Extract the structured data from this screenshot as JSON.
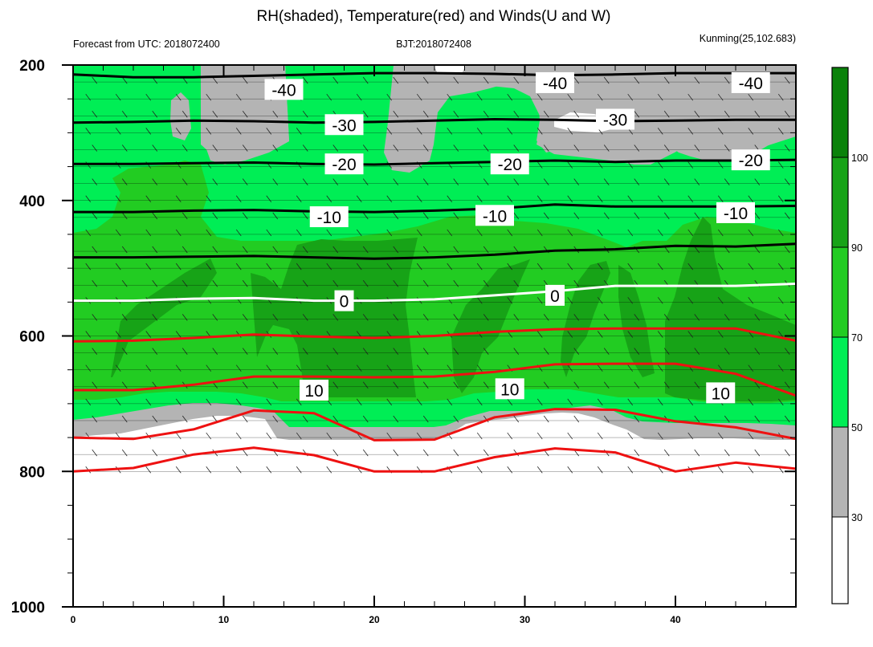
{
  "chart_data": {
    "type": "heatmap",
    "title": "RH(shaded), Temperature(red) and Winds(U and W)",
    "subtitle_left": "Forecast from UTC: 2018072400",
    "subtitle_center": "BJT:2018072408",
    "subtitle_right": "Kunming(25,102.683)",
    "x_range": [
      0,
      48
    ],
    "y_range": [
      200,
      1000
    ],
    "x_ticks": [
      "0",
      "10",
      "20",
      "30",
      "40"
    ],
    "y_ticks": [
      "200",
      "400",
      "600",
      "800",
      "1000"
    ],
    "colorbar_levels": [
      "30",
      "50",
      "70",
      "90",
      "100"
    ],
    "colors": {
      "rh_lt30": "#ffffff",
      "rh_30_50": "#b4b4b4",
      "rh_50_70": "#00ee55",
      "rh_70_90": "#22cc22",
      "rh_90_100": "#17a317",
      "rh_gt100": "#0a820a",
      "temp_warm": "#ee1111",
      "temp_cold": "#000000",
      "freezing": "#ffffff"
    },
    "temperature_contours": [
      {
        "label": "-40",
        "y": [
          214,
          218,
          218,
          216,
          214,
          212,
          212,
          213,
          215,
          214,
          212,
          212,
          212
        ]
      },
      {
        "label": "-30",
        "y": [
          285,
          284,
          282,
          283,
          285,
          284,
          282,
          280,
          281,
          283,
          282,
          281,
          281
        ]
      },
      {
        "label": "-20",
        "y": [
          346,
          346,
          345,
          344,
          346,
          347,
          345,
          343,
          341,
          343,
          341,
          341,
          340
        ]
      },
      {
        "label": "-10",
        "y": [
          417,
          417,
          415,
          414,
          416,
          417,
          415,
          412,
          406,
          409,
          409,
          409,
          408
        ]
      },
      {
        "label": "",
        "y": [
          484,
          484,
          483,
          482,
          484,
          486,
          484,
          480,
          474,
          472,
          467,
          468,
          464
        ]
      },
      {
        "label": "0",
        "y": [
          548,
          548,
          545,
          544,
          548,
          548,
          546,
          540,
          534,
          526,
          526,
          526,
          523
        ]
      },
      {
        "label": "",
        "y": [
          608,
          607,
          603,
          598,
          601,
          603,
          600,
          594,
          590,
          589,
          589,
          589,
          607
        ]
      },
      {
        "label": "10",
        "y": [
          680,
          680,
          672,
          660,
          660,
          661,
          660,
          653,
          642,
          641,
          641,
          656,
          688
        ]
      },
      {
        "label": "",
        "y": [
          750,
          752,
          738,
          710,
          714,
          754,
          753,
          720,
          708,
          709,
          726,
          735,
          752
        ]
      },
      {
        "label": "",
        "y": [
          800,
          795,
          775,
          765,
          776,
          800,
          800,
          779,
          766,
          772,
          800,
          787,
          796
        ]
      }
    ],
    "temperature_label_positions": [
      {
        "label": "-40",
        "x": [
          14,
          32,
          45
        ],
        "y": [
          236,
          226,
          226
        ]
      },
      {
        "label": "-30",
        "x": [
          18,
          36
        ],
        "y": [
          288,
          280
        ]
      },
      {
        "label": "-20",
        "x": [
          18,
          29,
          45
        ],
        "y": [
          346,
          346,
          340
        ]
      },
      {
        "label": "-10",
        "x": [
          17,
          28,
          44
        ],
        "y": [
          424,
          422,
          418
        ]
      },
      {
        "label": "0",
        "x": [
          18,
          32
        ],
        "y": [
          548,
          540
        ]
      },
      {
        "label": "10",
        "x": [
          16,
          29,
          43
        ],
        "y": [
          680,
          678,
          684
        ]
      }
    ]
  }
}
